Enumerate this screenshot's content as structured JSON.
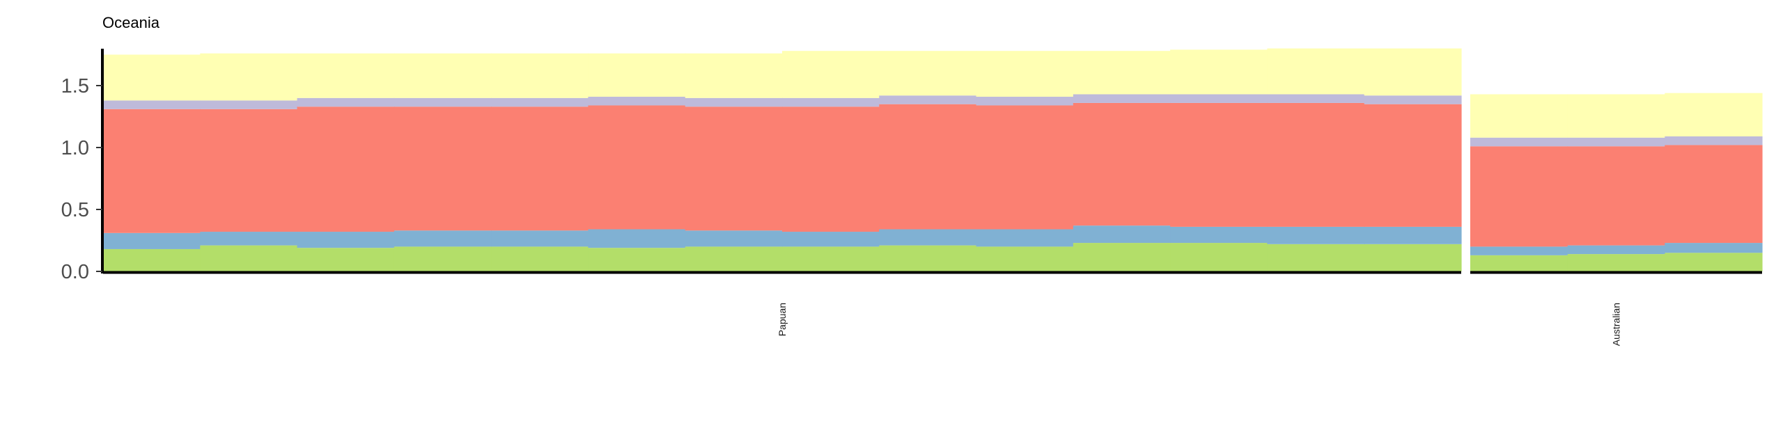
{
  "chart_data": {
    "type": "bar",
    "stacked": true,
    "title": "Oceania",
    "xlabel": "",
    "ylabel": "",
    "ylim": [
      0,
      1.8
    ],
    "yticks": [
      "0.0",
      "0.5",
      "1.0",
      "1.5"
    ],
    "grid": false,
    "legend": "none",
    "colors": [
      "#b3de69",
      "#80b1d3",
      "#fb8072",
      "#bebada",
      "#ffffb3"
    ],
    "groups": [
      {
        "label": "Papuan",
        "samples": 14,
        "series": [
          {
            "color": "#b3de69",
            "values": [
              0.18,
              0.21,
              0.19,
              0.2,
              0.2,
              0.19,
              0.2,
              0.2,
              0.21,
              0.2,
              0.23,
              0.23,
              0.22,
              0.22
            ]
          },
          {
            "color": "#80b1d3",
            "values": [
              0.13,
              0.11,
              0.13,
              0.13,
              0.13,
              0.15,
              0.13,
              0.12,
              0.13,
              0.14,
              0.14,
              0.13,
              0.14,
              0.14
            ]
          },
          {
            "color": "#fb8072",
            "values": [
              1.0,
              0.99,
              1.01,
              1.0,
              1.0,
              1.0,
              1.0,
              1.01,
              1.01,
              1.0,
              0.99,
              1.0,
              1.0,
              0.99
            ]
          },
          {
            "color": "#bebada",
            "values": [
              0.07,
              0.07,
              0.07,
              0.07,
              0.07,
              0.07,
              0.07,
              0.07,
              0.07,
              0.07,
              0.07,
              0.07,
              0.07,
              0.07
            ]
          },
          {
            "color": "#ffffb3",
            "values": [
              0.37,
              0.38,
              0.36,
              0.36,
              0.36,
              0.35,
              0.36,
              0.38,
              0.36,
              0.37,
              0.35,
              0.36,
              0.37,
              0.38
            ]
          }
        ]
      },
      {
        "label": "Australian",
        "samples": 3,
        "series": [
          {
            "color": "#b3de69",
            "values": [
              0.13,
              0.14,
              0.15
            ]
          },
          {
            "color": "#80b1d3",
            "values": [
              0.07,
              0.07,
              0.08
            ]
          },
          {
            "color": "#fb8072",
            "values": [
              0.81,
              0.8,
              0.79
            ]
          },
          {
            "color": "#bebada",
            "values": [
              0.07,
              0.07,
              0.07
            ]
          },
          {
            "color": "#ffffb3",
            "values": [
              0.35,
              0.35,
              0.35
            ]
          }
        ]
      }
    ]
  }
}
